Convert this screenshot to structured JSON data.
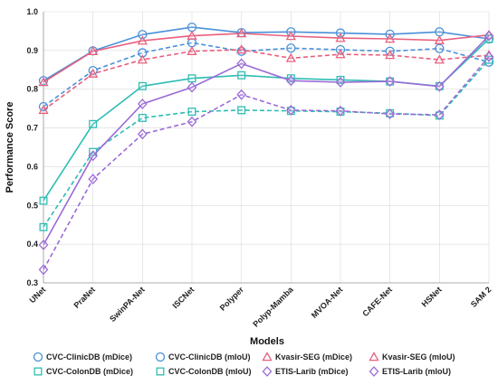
{
  "chart_data": {
    "type": "line",
    "xlabel": "Models",
    "ylabel": "Performance Score",
    "ylim": [
      0.3,
      1.0
    ],
    "yticks": [
      "0.3",
      "0.4",
      "0.5",
      "0.6",
      "0.7",
      "0.8",
      "0.9",
      "1.0"
    ],
    "grid": true,
    "legend": "bottom",
    "categories": [
      "UNet",
      "PraNet",
      "SwinPA-Net",
      "ISCNet",
      "Polyper",
      "Polyp-Mamba",
      "MVOA-Net",
      "CAFE-Net",
      "HSNet",
      "SAM 2"
    ],
    "series": [
      {
        "name": "CVC-ClinicDB (mDice)",
        "color": "#4a90d9",
        "marker": "circle",
        "dashed": false,
        "values": [
          0.822,
          0.899,
          0.941,
          0.96,
          0.946,
          0.948,
          0.945,
          0.942,
          0.948,
          0.93
        ]
      },
      {
        "name": "CVC-ClinicDB (mIoU)",
        "color": "#4a90d9",
        "marker": "circle",
        "dashed": true,
        "values": [
          0.755,
          0.848,
          0.894,
          0.92,
          0.898,
          0.906,
          0.902,
          0.898,
          0.905,
          0.87
        ]
      },
      {
        "name": "Kvasir-SEG (mDice)",
        "color": "#e8607f",
        "marker": "triangle",
        "dashed": false,
        "values": [
          0.818,
          0.898,
          0.925,
          0.938,
          0.944,
          0.937,
          0.932,
          0.93,
          0.926,
          0.94
        ]
      },
      {
        "name": "Kvasir-SEG (mIoU)",
        "color": "#e8607f",
        "marker": "triangle",
        "dashed": true,
        "values": [
          0.746,
          0.84,
          0.876,
          0.898,
          0.902,
          0.88,
          0.89,
          0.888,
          0.876,
          0.888
        ]
      },
      {
        "name": "CVC-ColonDB (mDice)",
        "color": "#2ebdb3",
        "marker": "square",
        "dashed": false,
        "values": [
          0.512,
          0.71,
          0.808,
          0.828,
          0.836,
          0.828,
          0.824,
          0.82,
          0.808,
          0.93
        ]
      },
      {
        "name": "CVC-ColonDB (mIoU)",
        "color": "#2ebdb3",
        "marker": "square",
        "dashed": true,
        "values": [
          0.444,
          0.638,
          0.726,
          0.742,
          0.746,
          0.744,
          0.742,
          0.738,
          0.732,
          0.876
        ]
      },
      {
        "name": "ETIS-Larib (mDice)",
        "color": "#9b6bd6",
        "marker": "diamond",
        "dashed": false,
        "values": [
          0.398,
          0.628,
          0.762,
          0.805,
          0.866,
          0.822,
          0.818,
          0.82,
          0.807,
          0.938
        ]
      },
      {
        "name": "ETIS-Larib (mIoU)",
        "color": "#9b6bd6",
        "marker": "diamond",
        "dashed": true,
        "values": [
          0.334,
          0.568,
          0.684,
          0.716,
          0.786,
          0.746,
          0.744,
          0.736,
          0.734,
          0.884
        ]
      }
    ]
  }
}
